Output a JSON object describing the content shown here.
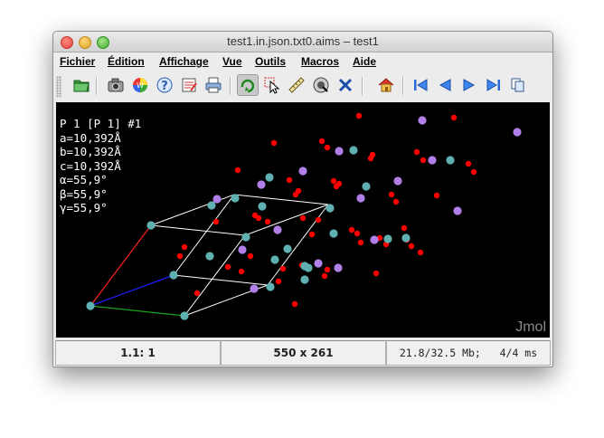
{
  "window": {
    "title": "test1.in.json.txt0.aims – test1"
  },
  "menu": [
    "Fichier",
    "Édition",
    "Affichage",
    "Vue",
    "Outils",
    "Macros",
    "Aide"
  ],
  "toolbar": {
    "buttons": [
      "open-icon",
      "camera-icon",
      "spin-color-icon",
      "help-icon",
      "script-editor-icon",
      "print-icon",
      "rotate-icon",
      "pick-icon",
      "measure-icon",
      "orientation-icon",
      "delete-icon",
      "home-icon",
      "first-frame-icon",
      "previous-frame-icon",
      "next-frame-icon",
      "last-frame-icon",
      "copy-icon"
    ],
    "active": "rotate-icon"
  },
  "viewer": {
    "info_lines": [
      "P 1 [P 1] #1",
      "a=10,392Å",
      "b=10,392Å",
      "c=10,392Å",
      "α=55,9°",
      "β=55,9°",
      "γ=55,9°"
    ],
    "logo": "Jmol",
    "colors": {
      "oxygen": "#ff0000",
      "silicon": "#5fb0b0",
      "other": "#b07fe8",
      "cell": "#ffffff",
      "axis_a": "#ff2020",
      "axis_b": "#2020ff",
      "axis_c": "#20a020"
    }
  },
  "status": {
    "frame": "1.1: 1",
    "size": "550 x 261",
    "memory": "21.8/32.5 Mb;   4/4 ms"
  }
}
